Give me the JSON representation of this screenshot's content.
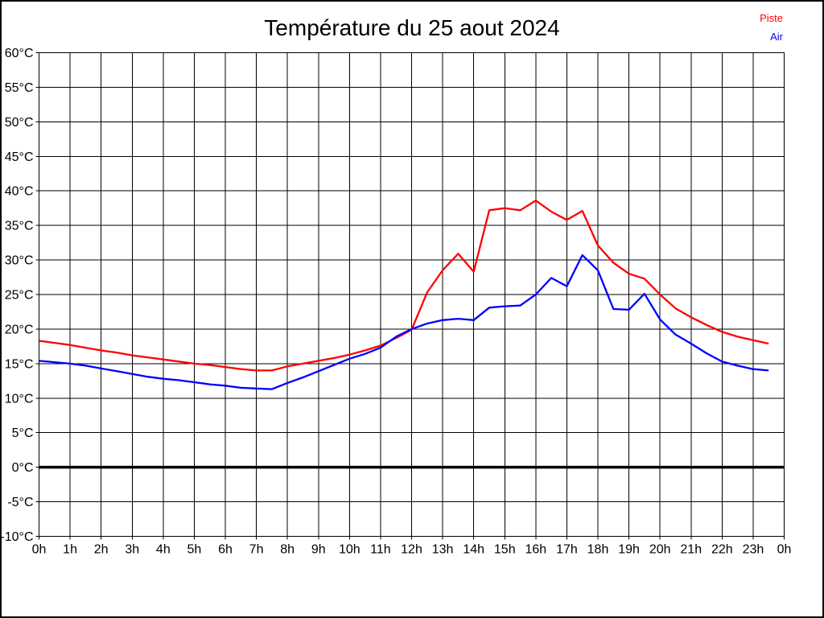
{
  "chart_data": {
    "type": "line",
    "title": "Température du 25 aout 2024",
    "xlabel": "",
    "ylabel": "",
    "y_unit": "°C",
    "xlim": [
      0,
      24
    ],
    "ylim": [
      -10,
      60
    ],
    "y_step": 5,
    "grid": true,
    "zero_line_value": 0,
    "legend_position": "top-right",
    "x_tick_labels": [
      "0h",
      "1h",
      "2h",
      "3h",
      "4h",
      "5h",
      "6h",
      "7h",
      "8h",
      "9h",
      "10h",
      "11h",
      "12h",
      "13h",
      "14h",
      "15h",
      "16h",
      "17h",
      "18h",
      "19h",
      "20h",
      "21h",
      "22h",
      "23h",
      "0h"
    ],
    "y_tick_labels": [
      "60°C",
      "55°C",
      "50°C",
      "45°C",
      "40°C",
      "35°C",
      "30°C",
      "25°C",
      "20°C",
      "15°C",
      "10°C",
      "5°C",
      "0°C",
      "-5°C",
      "-10°C"
    ],
    "x": [
      0,
      0.5,
      1,
      1.5,
      2,
      2.5,
      3,
      3.5,
      4,
      4.5,
      5,
      5.5,
      6,
      6.5,
      7,
      7.5,
      8,
      8.5,
      9,
      9.5,
      10,
      10.5,
      11,
      11.5,
      12,
      12.5,
      13,
      13.5,
      14,
      14.5,
      15,
      15.5,
      16,
      16.5,
      17,
      17.5,
      18,
      18.5,
      19,
      19.5,
      20,
      20.5,
      21,
      21.5,
      22,
      22.5,
      23,
      23.5
    ],
    "series": [
      {
        "name": "Piste",
        "color": "#ff0000",
        "values": [
          18.3,
          18.0,
          17.7,
          17.3,
          16.9,
          16.6,
          16.2,
          15.9,
          15.6,
          15.3,
          15.0,
          14.8,
          14.5,
          14.2,
          14.0,
          14.0,
          14.6,
          15.0,
          15.4,
          15.8,
          16.3,
          16.9,
          17.6,
          18.7,
          19.9,
          25.3,
          28.5,
          30.9,
          28.3,
          37.2,
          37.5,
          37.2,
          38.6,
          37.0,
          35.8,
          37.1,
          32.1,
          29.6,
          28.0,
          27.3,
          25.0,
          23.0,
          21.7,
          20.6,
          19.6,
          18.9,
          18.4,
          17.9
        ]
      },
      {
        "name": "Air",
        "color": "#0000ff",
        "values": [
          15.4,
          15.2,
          15.0,
          14.7,
          14.3,
          13.9,
          13.5,
          13.1,
          12.8,
          12.6,
          12.3,
          12.0,
          11.8,
          11.5,
          11.4,
          11.3,
          12.2,
          13.0,
          13.9,
          14.8,
          15.7,
          16.4,
          17.3,
          18.9,
          20.0,
          20.8,
          21.3,
          21.5,
          21.3,
          23.1,
          23.3,
          23.4,
          25.0,
          27.4,
          26.2,
          30.7,
          28.5,
          22.9,
          22.8,
          25.1,
          21.4,
          19.2,
          17.9,
          16.5,
          15.3,
          14.7,
          14.2,
          14.0
        ]
      }
    ]
  }
}
